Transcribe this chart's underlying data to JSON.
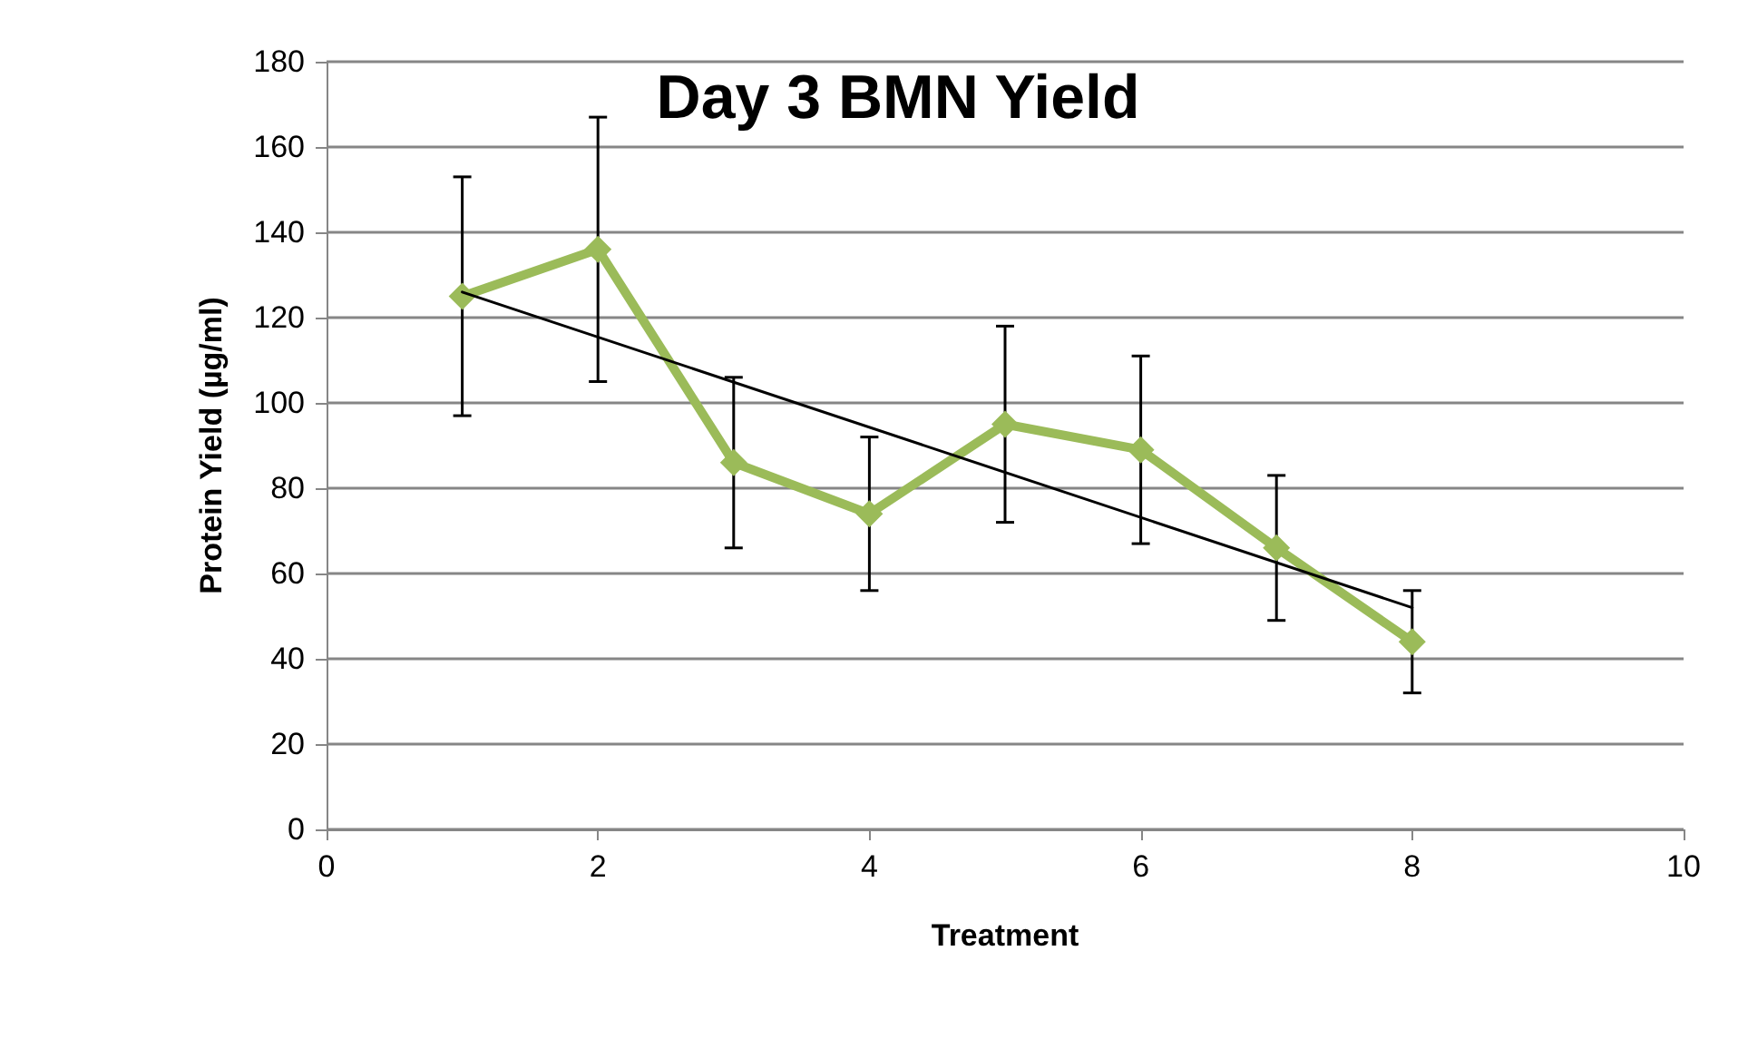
{
  "chart_data": {
    "type": "line",
    "title": "Day 3 BMN Yield",
    "xlabel": "Treatment",
    "ylabel": "Protein Yield (µg/ml)",
    "xlim": [
      0,
      10
    ],
    "xticks": [
      0,
      2,
      4,
      6,
      8,
      10
    ],
    "ylim": [
      0,
      180
    ],
    "yticks": [
      0,
      20,
      40,
      60,
      80,
      100,
      120,
      140,
      160,
      180
    ],
    "grid": "y",
    "marker": "diamond",
    "line_style": "solid",
    "series": [
      {
        "color": "#9bbb59",
        "x": [
          1,
          2,
          3,
          4,
          5,
          6,
          7,
          8
        ],
        "values": [
          125,
          136,
          86,
          74,
          95,
          89,
          66,
          44
        ],
        "errors": [
          28,
          31,
          20,
          18,
          23,
          22,
          17,
          12
        ]
      },
      {
        "type": "line",
        "color": "#000000",
        "x": [
          1,
          8
        ],
        "values": [
          126,
          52
        ],
        "marker": "none"
      }
    ]
  }
}
